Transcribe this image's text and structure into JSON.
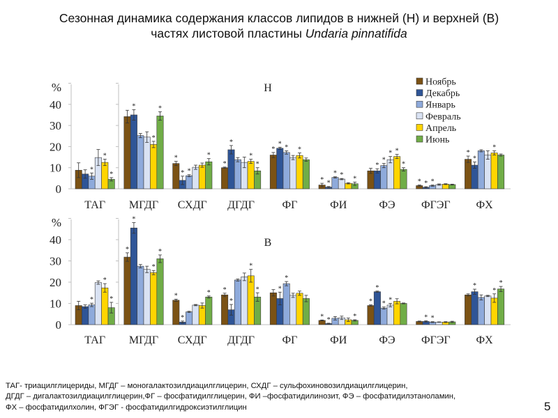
{
  "slide": {
    "title_line1": "Сезонная динамика содержания классов липидов в нижней (Н) и верхней (В)",
    "title_line2_prefix": "частях листовой пластины ",
    "title_line2_species": "Undaria pinnatifida",
    "footnote_lines": [
      "ТАГ- триацилглицериды,  МГДГ – моногалактозилдиацилглицерин,  СХДГ – сульфохиновозилдиацилглицерин,",
      "ДГДГ – дигалактозилдиацилглицерин,ФГ  – фосфатидилглицерин,  ФИ –фосфатидилинозит,  ФЭ – фосфатидилэтаноламин,",
      "ФХ – фосфатидилхолин,  ФГЭГ - фосфатидилгидроксиэтилглицин"
    ],
    "page_number": "5"
  },
  "chart_data": [
    {
      "type": "bar",
      "panel": "Н",
      "title": "Н",
      "ylabel": "%",
      "ylim": [
        0,
        50
      ],
      "yticks": [
        0,
        10,
        20,
        30,
        40
      ],
      "legend_position": "top-right",
      "categories": [
        "ТАГ",
        "МГДГ",
        "СХДГ",
        "ДГДГ",
        "ФГ",
        "ФИ",
        "ФЭ",
        "ФГЭГ",
        "ФХ"
      ],
      "series": [
        {
          "name": "Ноябрь",
          "color": "#7b5214",
          "values": [
            8.8,
            34.2,
            12.0,
            10.0,
            16.0,
            1.8,
            8.5,
            1.5,
            14.0
          ],
          "errors": [
            3.5,
            3.0,
            1.0,
            0.3,
            1.2,
            0.8,
            1.2,
            0.3,
            1.5
          ],
          "significant": [
            false,
            false,
            true,
            true,
            true,
            true,
            false,
            true,
            true
          ]
        },
        {
          "name": "Декабрь",
          "color": "#2f5597",
          "values": [
            7.0,
            35.0,
            4.0,
            18.5,
            19.2,
            0.8,
            8.5,
            0.7,
            11.2
          ],
          "errors": [
            2.0,
            2.5,
            2.0,
            2.0,
            0.5,
            0.3,
            1.0,
            0.3,
            1.5
          ],
          "significant": [
            false,
            true,
            true,
            true,
            true,
            true,
            true,
            true,
            true
          ]
        },
        {
          "name": "Январь",
          "color": "#8eaadb",
          "values": [
            6.0,
            25.2,
            6.2,
            13.8,
            17.2,
            5.4,
            11.0,
            1.5,
            18.0
          ],
          "errors": [
            1.5,
            1.0,
            0.5,
            1.0,
            0.8,
            0.3,
            1.0,
            0.3,
            0.5
          ],
          "significant": [
            true,
            false,
            true,
            false,
            true,
            true,
            true,
            true,
            false
          ]
        },
        {
          "name": "Февраль",
          "color": "#d9e2f3",
          "values": [
            14.8,
            24.5,
            10.2,
            12.5,
            14.8,
            4.6,
            13.8,
            2.0,
            16.0
          ],
          "errors": [
            3.8,
            2.5,
            1.0,
            2.5,
            1.0,
            0.3,
            1.5,
            0.3,
            2.0
          ],
          "significant": [
            false,
            false,
            false,
            false,
            false,
            true,
            true,
            false,
            false
          ]
        },
        {
          "name": "Апрель",
          "color": "#ffd500",
          "values": [
            12.5,
            21.0,
            11.2,
            13.0,
            15.8,
            2.6,
            15.3,
            2.2,
            17.0
          ],
          "errors": [
            1.5,
            1.5,
            1.0,
            1.0,
            1.2,
            0.3,
            1.0,
            0.2,
            1.0
          ],
          "significant": [
            true,
            true,
            false,
            true,
            true,
            false,
            true,
            false,
            true
          ]
        },
        {
          "name": "Июнь",
          "color": "#70ad47",
          "values": [
            4.5,
            34.5,
            12.8,
            8.5,
            13.8,
            2.4,
            9.2,
            2.0,
            16.0
          ],
          "errors": [
            0.8,
            2.0,
            1.5,
            1.5,
            0.8,
            0.8,
            0.8,
            0.2,
            0.5
          ],
          "significant": [
            true,
            true,
            true,
            true,
            false,
            true,
            true,
            false,
            false
          ]
        }
      ]
    },
    {
      "type": "bar",
      "panel": "В",
      "title": "В",
      "ylabel": "%",
      "ylim": [
        0,
        50
      ],
      "yticks": [
        0,
        10,
        20,
        30,
        40
      ],
      "categories": [
        "ТАГ",
        "МГДГ",
        "СХДГ",
        "ДГДГ",
        "ФГ",
        "ФИ",
        "ФЭ",
        "ФГЭГ",
        "ФХ"
      ],
      "series": [
        {
          "name": "Ноябрь",
          "color": "#7b5214",
          "values": [
            9.0,
            31.8,
            11.5,
            14.0,
            15.0,
            2.0,
            9.0,
            1.5,
            14.0
          ],
          "errors": [
            2.0,
            2.0,
            0.5,
            0.8,
            1.5,
            0.2,
            0.3,
            0.2,
            0.5
          ],
          "significant": [
            false,
            true,
            true,
            true,
            false,
            true,
            true,
            false,
            false
          ]
        },
        {
          "name": "Декабрь",
          "color": "#2f5597",
          "values": [
            8.5,
            45.5,
            1.2,
            7.0,
            12.3,
            0.5,
            15.5,
            1.5,
            15.5
          ],
          "errors": [
            0.8,
            2.5,
            0.5,
            2.5,
            3.0,
            0.2,
            0.3,
            0.3,
            1.2
          ],
          "significant": [
            false,
            true,
            true,
            true,
            true,
            true,
            true,
            true,
            true
          ]
        },
        {
          "name": "Январь",
          "color": "#8eaadb",
          "values": [
            9.3,
            27.5,
            6.0,
            21.0,
            19.3,
            3.0,
            7.8,
            1.2,
            12.8
          ],
          "errors": [
            0.8,
            0.8,
            0.3,
            0.5,
            1.0,
            0.8,
            0.5,
            0.2,
            1.2
          ],
          "significant": [
            true,
            false,
            false,
            false,
            true,
            false,
            true,
            true,
            false
          ]
        },
        {
          "name": "Февраль",
          "color": "#d9e2f3",
          "values": [
            19.8,
            26.0,
            9.2,
            22.5,
            13.8,
            3.2,
            9.2,
            1.2,
            13.5
          ],
          "errors": [
            0.8,
            1.5,
            0.3,
            1.8,
            1.0,
            0.8,
            0.8,
            0.1,
            0.3
          ],
          "significant": [
            false,
            false,
            false,
            false,
            false,
            false,
            true,
            false,
            false
          ]
        },
        {
          "name": "Апрель",
          "color": "#ffd500",
          "values": [
            17.3,
            24.5,
            9.0,
            23.0,
            14.8,
            2.3,
            11.0,
            1.2,
            12.5
          ],
          "errors": [
            2.0,
            1.0,
            1.2,
            3.0,
            1.0,
            0.8,
            1.2,
            0.2,
            2.0
          ],
          "significant": [
            true,
            true,
            false,
            true,
            false,
            false,
            false,
            false,
            true
          ]
        },
        {
          "name": "Июнь",
          "color": "#70ad47",
          "values": [
            8.0,
            31.0,
            13.0,
            13.0,
            12.3,
            2.0,
            10.0,
            1.3,
            16.8
          ],
          "errors": [
            2.5,
            1.8,
            0.5,
            2.0,
            1.5,
            0.3,
            0.2,
            0.3,
            1.2
          ],
          "significant": [
            true,
            true,
            true,
            true,
            false,
            true,
            false,
            false,
            true
          ]
        }
      ]
    }
  ]
}
